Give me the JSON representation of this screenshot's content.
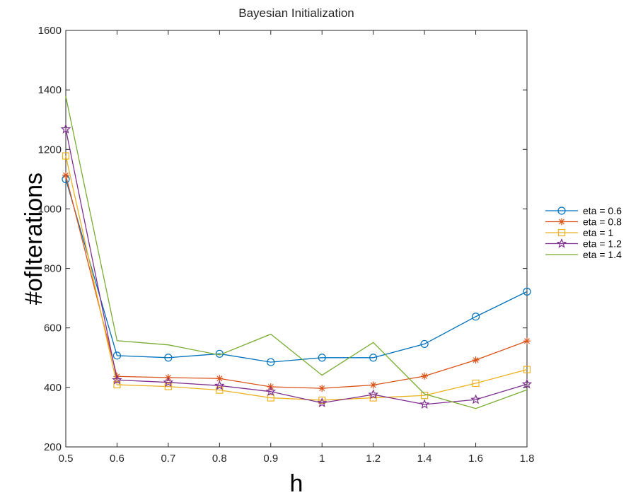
{
  "chart_data": {
    "type": "line",
    "title": "Bayesian Initialization",
    "xlabel": "h",
    "ylabel": "#ofIterations",
    "x": [
      "0.5",
      "0.6",
      "0.7",
      "0.8",
      "0.9",
      "1",
      "1.2",
      "1.4",
      "1.6",
      "1.8"
    ],
    "ylim": [
      200,
      1600
    ],
    "yticks": [
      "200",
      "400",
      "600",
      "800",
      "1000",
      "1200",
      "1400",
      "1600"
    ],
    "grid": false,
    "legend_position": "outside-right",
    "series": [
      {
        "name": "eta = 0.6",
        "marker": "circle",
        "color": "#0072BD",
        "values": [
          1100,
          507,
          500,
          513,
          485,
          500,
          500,
          546,
          638,
          722
        ]
      },
      {
        "name": "eta = 0.8",
        "marker": "asterisk",
        "color": "#D95319",
        "values": [
          1113,
          437,
          433,
          430,
          402,
          397,
          408,
          438,
          492,
          556
        ]
      },
      {
        "name": "eta = 1",
        "marker": "square",
        "color": "#EDB120",
        "values": [
          1178,
          409,
          403,
          391,
          365,
          357,
          365,
          373,
          414,
          460
        ]
      },
      {
        "name": "eta = 1.2",
        "marker": "star",
        "color": "#7E2F8E",
        "values": [
          1268,
          425,
          417,
          406,
          386,
          348,
          376,
          343,
          359,
          411
        ]
      },
      {
        "name": "eta = 1.4",
        "marker": "none",
        "color": "#77AC30",
        "values": [
          1378,
          557,
          543,
          509,
          579,
          441,
          551,
          378,
          329,
          392
        ]
      }
    ]
  }
}
